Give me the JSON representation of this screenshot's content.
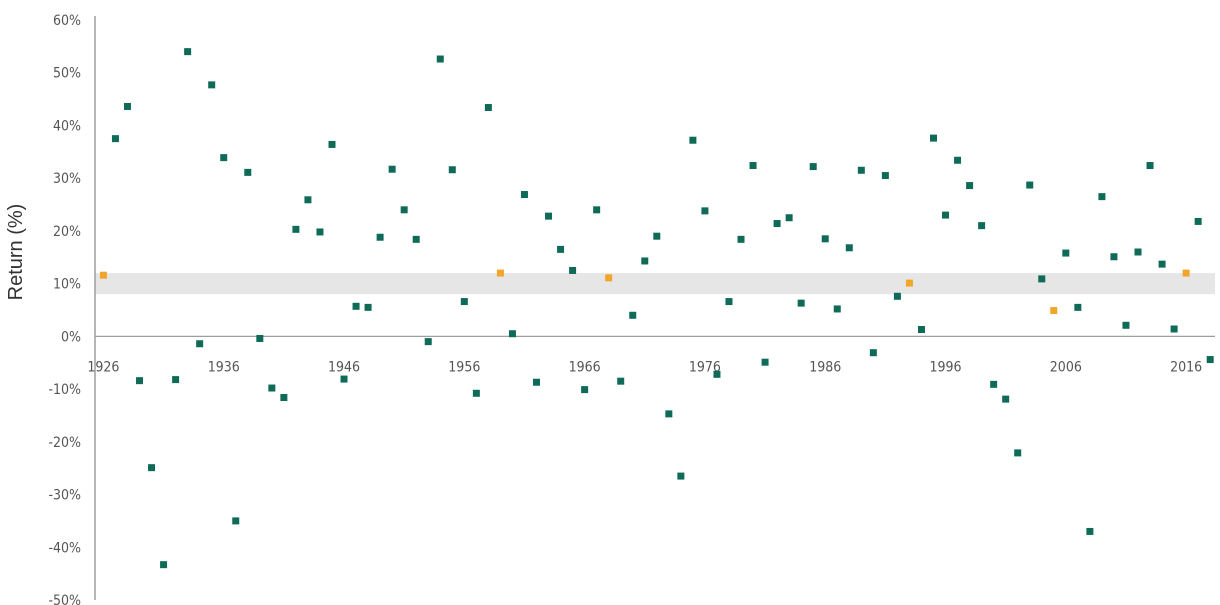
{
  "chart_data": {
    "type": "scatter",
    "title": "",
    "xlabel": "",
    "ylabel": "Return (%)",
    "ylim": [
      -50,
      60
    ],
    "xlim": [
      1925.3,
      2018.4
    ],
    "y_tick_values": [
      60,
      50,
      40,
      30,
      20,
      10,
      0,
      -10,
      -20,
      -30,
      -40,
      -50
    ],
    "y_tick_labels": [
      "60%",
      "50%",
      "40%",
      "30%",
      "20%",
      "10%",
      "0%",
      "-10%",
      "-20%",
      "-30%",
      "-40%",
      "-50%"
    ],
    "x_tick_values": [
      1926,
      1936,
      1946,
      1956,
      1966,
      1976,
      1986,
      1996,
      2006,
      2016
    ],
    "x_tick_labels": [
      "1926",
      "1936",
      "1946",
      "1956",
      "1966",
      "1976",
      "1986",
      "1996",
      "2006",
      "2016"
    ],
    "band": {
      "from": 8,
      "to": 12,
      "color": "#e6e6e6"
    },
    "grid": false,
    "colors": {
      "default": "#0f6b58",
      "highlight": "#f2a52b",
      "axis": "#9e9e9e"
    },
    "highlight_years": [
      1926,
      1959,
      1968,
      1993,
      2005,
      2016
    ],
    "points": [
      [
        1926,
        11.6
      ],
      [
        1927,
        37.5
      ],
      [
        1928,
        43.6
      ],
      [
        1929,
        -8.4
      ],
      [
        1930,
        -24.9
      ],
      [
        1931,
        -43.3
      ],
      [
        1932,
        -8.2
      ],
      [
        1933,
        54.0
      ],
      [
        1934,
        -1.4
      ],
      [
        1935,
        47.7
      ],
      [
        1936,
        33.9
      ],
      [
        1937,
        -35.0
      ],
      [
        1938,
        31.1
      ],
      [
        1939,
        -0.4
      ],
      [
        1940,
        -9.8
      ],
      [
        1941,
        -11.6
      ],
      [
        1942,
        20.3
      ],
      [
        1943,
        25.9
      ],
      [
        1944,
        19.8
      ],
      [
        1945,
        36.4
      ],
      [
        1946,
        -8.1
      ],
      [
        1947,
        5.7
      ],
      [
        1948,
        5.5
      ],
      [
        1949,
        18.8
      ],
      [
        1950,
        31.7
      ],
      [
        1951,
        24.0
      ],
      [
        1952,
        18.4
      ],
      [
        1953,
        -1.0
      ],
      [
        1954,
        52.6
      ],
      [
        1955,
        31.6
      ],
      [
        1956,
        6.6
      ],
      [
        1957,
        -10.8
      ],
      [
        1958,
        43.4
      ],
      [
        1959,
        12.0
      ],
      [
        1960,
        0.5
      ],
      [
        1961,
        26.9
      ],
      [
        1962,
        -8.7
      ],
      [
        1963,
        22.8
      ],
      [
        1964,
        16.5
      ],
      [
        1965,
        12.5
      ],
      [
        1966,
        -10.1
      ],
      [
        1967,
        24.0
      ],
      [
        1968,
        11.1
      ],
      [
        1969,
        -8.5
      ],
      [
        1970,
        4.0
      ],
      [
        1971,
        14.3
      ],
      [
        1972,
        19.0
      ],
      [
        1973,
        -14.7
      ],
      [
        1974,
        -26.5
      ],
      [
        1975,
        37.2
      ],
      [
        1976,
        23.8
      ],
      [
        1977,
        -7.2
      ],
      [
        1978,
        6.6
      ],
      [
        1979,
        18.4
      ],
      [
        1980,
        32.4
      ],
      [
        1981,
        -4.9
      ],
      [
        1982,
        21.4
      ],
      [
        1983,
        22.5
      ],
      [
        1984,
        6.3
      ],
      [
        1985,
        32.2
      ],
      [
        1986,
        18.5
      ],
      [
        1987,
        5.2
      ],
      [
        1988,
        16.8
      ],
      [
        1989,
        31.5
      ],
      [
        1990,
        -3.1
      ],
      [
        1991,
        30.5
      ],
      [
        1992,
        7.6
      ],
      [
        1993,
        10.1
      ],
      [
        1994,
        1.3
      ],
      [
        1995,
        37.6
      ],
      [
        1996,
        23.0
      ],
      [
        1997,
        33.4
      ],
      [
        1998,
        28.6
      ],
      [
        1999,
        21.0
      ],
      [
        2000,
        -9.1
      ],
      [
        2001,
        -11.9
      ],
      [
        2002,
        -22.1
      ],
      [
        2003,
        28.7
      ],
      [
        2004,
        10.9
      ],
      [
        2005,
        4.9
      ],
      [
        2006,
        15.8
      ],
      [
        2007,
        5.5
      ],
      [
        2008,
        -37.0
      ],
      [
        2009,
        26.5
      ],
      [
        2010,
        15.1
      ],
      [
        2011,
        2.1
      ],
      [
        2012,
        16.0
      ],
      [
        2013,
        32.4
      ],
      [
        2014,
        13.7
      ],
      [
        2015,
        1.4
      ],
      [
        2016,
        12.0
      ],
      [
        2017,
        21.8
      ],
      [
        2018,
        -4.4
      ]
    ]
  }
}
